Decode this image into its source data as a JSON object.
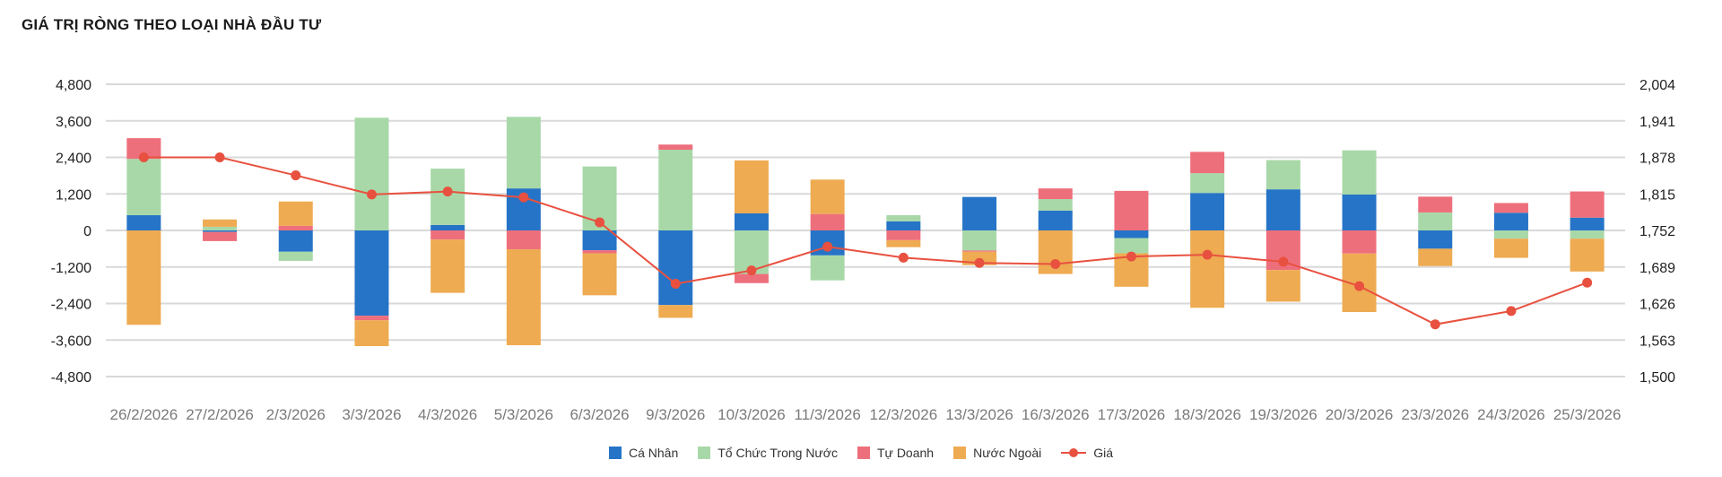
{
  "chart_data": {
    "type": "bar",
    "title": "GIÁ TRỊ RÒNG THEO LOẠI NHÀ ĐẦU TƯ",
    "stacked": true,
    "categories": [
      "26/2/2026",
      "27/2/2026",
      "2/3/2026",
      "3/3/2026",
      "4/3/2026",
      "5/3/2026",
      "6/3/2026",
      "9/3/2026",
      "10/3/2026",
      "11/3/2026",
      "12/3/2026",
      "13/3/2026",
      "16/3/2026",
      "17/3/2026",
      "18/3/2026",
      "19/3/2026",
      "20/3/2026",
      "23/3/2026",
      "24/3/2026",
      "25/3/2026"
    ],
    "series": [
      {
        "name": "Cá Nhân",
        "type": "bar",
        "color": "#2674c7",
        "values": [
          500,
          -50,
          -700,
          -2800,
          180,
          1380,
          -650,
          -2450,
          560,
          -820,
          300,
          1100,
          650,
          -250,
          1230,
          1350,
          1180,
          -600,
          580,
          420
        ]
      },
      {
        "name": "Tổ Chức Trong Nước",
        "type": "bar",
        "color": "#a8d8a8",
        "values": [
          1850,
          120,
          -300,
          3700,
          1850,
          2350,
          2100,
          2650,
          -1430,
          -820,
          200,
          -660,
          380,
          -500,
          650,
          960,
          1450,
          590,
          -270,
          -270
        ]
      },
      {
        "name": "Tự Doanh",
        "type": "bar",
        "color": "#ee6f7c",
        "values": [
          680,
          -300,
          150,
          -150,
          -300,
          -620,
          -100,
          170,
          -300,
          540,
          -320,
          -40,
          350,
          1300,
          700,
          -1300,
          -760,
          520,
          320,
          860
        ]
      },
      {
        "name": "Nước Ngoài",
        "type": "bar",
        "color": "#eeab52",
        "values": [
          -3100,
          240,
          800,
          -850,
          -1750,
          -3150,
          -1380,
          -420,
          1740,
          1130,
          -230,
          -440,
          -1430,
          -1100,
          -2540,
          -1040,
          -1920,
          -570,
          -630,
          -1080
        ]
      },
      {
        "name": "Giá",
        "type": "line",
        "axis": "right",
        "color": "#e8513f",
        "values": [
          1878,
          1878,
          1847,
          1814,
          1819,
          1809,
          1766,
          1660,
          1683,
          1724,
          1705,
          1696,
          1694,
          1707,
          1710,
          1698,
          1656,
          1590,
          1613,
          1662
        ]
      }
    ],
    "y_left": {
      "ticks": [
        "4,800",
        "3,600",
        "2,400",
        "1,200",
        "0",
        "-1,200",
        "-2,400",
        "-3,600",
        "-4,800"
      ],
      "ylim": [
        -4800,
        4800
      ]
    },
    "y_right": {
      "ticks": [
        "2,004",
        "1,941",
        "1,878",
        "1,815",
        "1,752",
        "1,689",
        "1,626",
        "1,563",
        "1,500"
      ],
      "ylim": [
        1500,
        2004
      ]
    },
    "grid": true,
    "legend_position": "bottom"
  }
}
